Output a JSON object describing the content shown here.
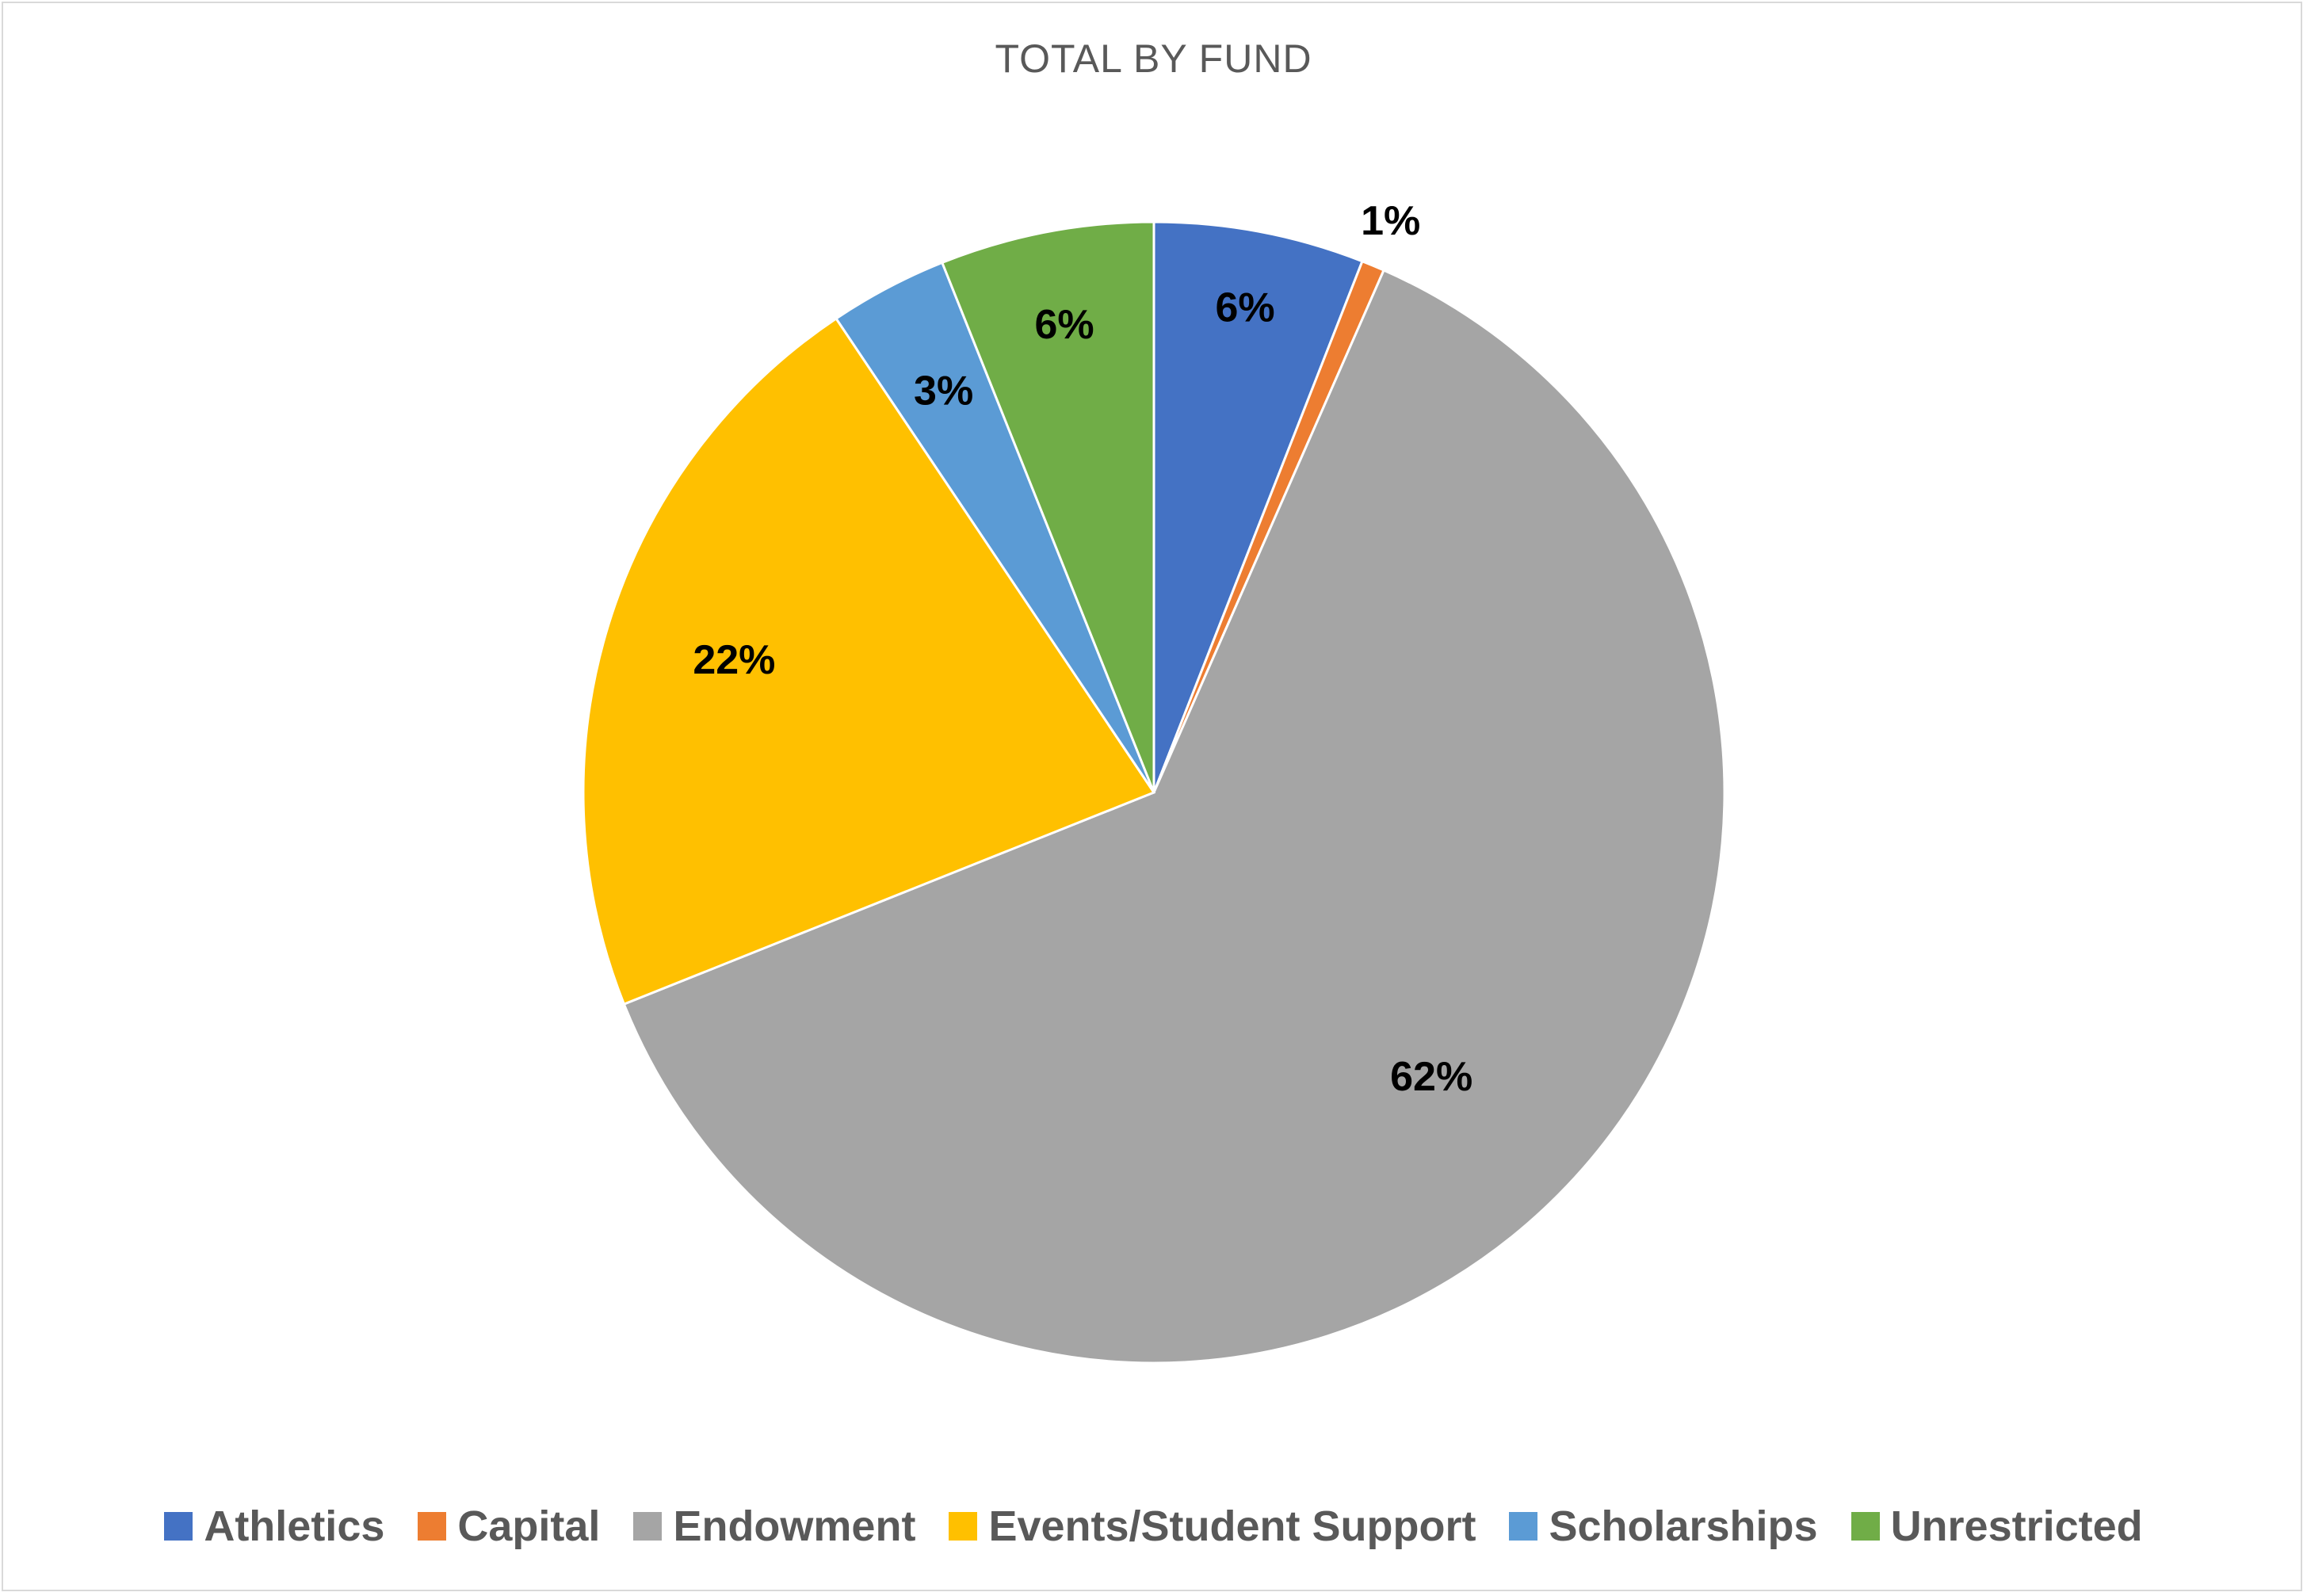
{
  "chart_data": {
    "type": "pie",
    "title": "TOTAL BY FUND",
    "categories": [
      "Athletics",
      "Capital",
      "Endowment",
      "Events/Student Support",
      "Scholarships",
      "Unrestricted"
    ],
    "values": [
      6,
      1,
      62,
      22,
      3,
      6
    ],
    "data_labels": [
      "6%",
      "1%",
      "62%",
      "22%",
      "3%",
      "6%"
    ],
    "slice_fractions": [
      0.0595,
      0.0065,
      0.6235,
      0.2165,
      0.0335,
      0.0605
    ],
    "colors": [
      "#4472C4",
      "#ED7D31",
      "#A5A5A5",
      "#FFC000",
      "#5B9BD5",
      "#70AD47"
    ],
    "legend_position": "bottom",
    "start_angle_deg": 0,
    "direction": "clockwise"
  }
}
